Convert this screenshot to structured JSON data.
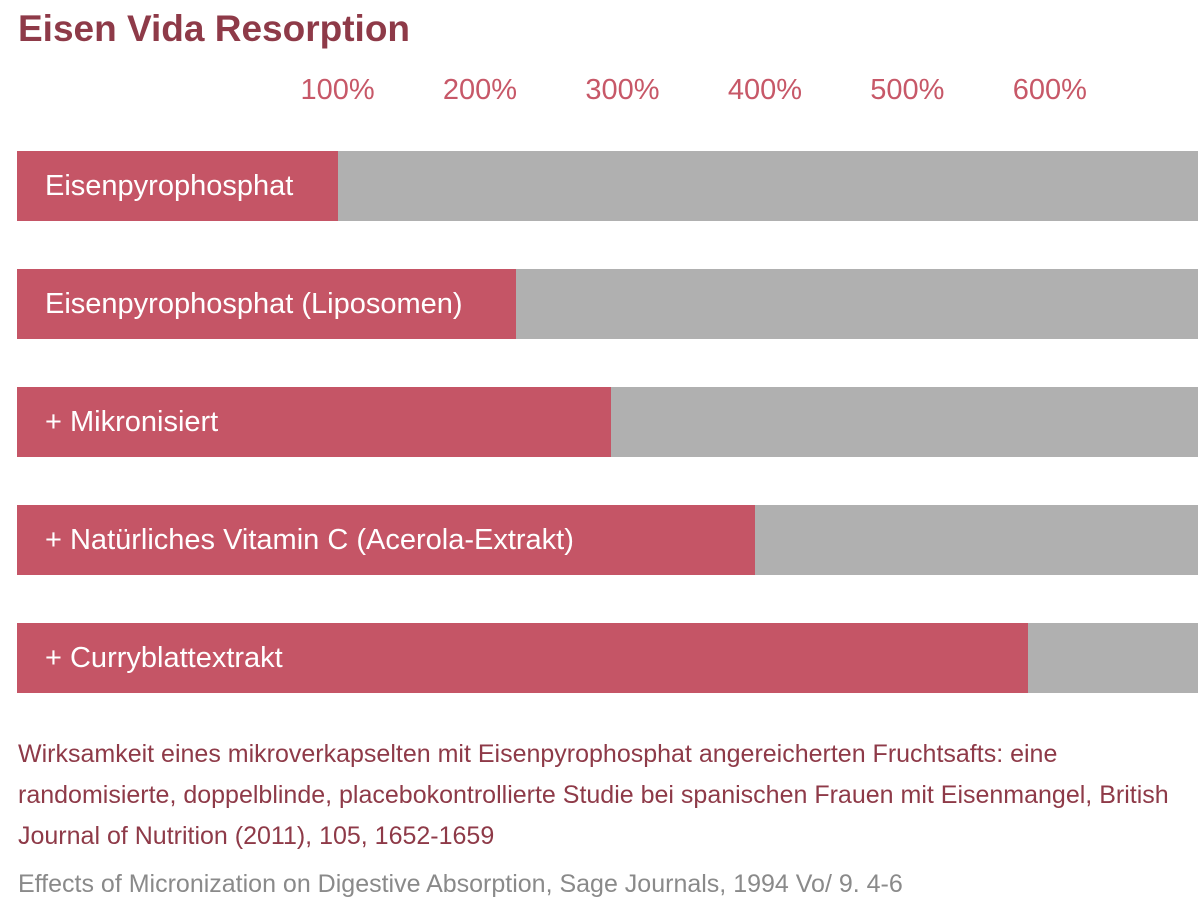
{
  "chart_data": {
    "type": "bar",
    "orientation": "horizontal",
    "title": "Eisen Vida Resorption",
    "categories": [
      "Eisenpyrophosphat",
      "Eisenpyrophosphat (Liposomen)",
      "+ Mikronisiert",
      "+ Natürliches Vitamin C (Acerola-Extrakt)",
      "+ Curryblattextrakt"
    ],
    "values": [
      100,
      225,
      292,
      393,
      585
    ],
    "tick_labels": [
      "100%",
      "200%",
      "300%",
      "400%",
      "500%",
      "600%"
    ],
    "ticks": [
      100,
      200,
      300,
      400,
      500,
      600
    ],
    "xlim": [
      -125,
      704
    ],
    "grid": false,
    "colors": {
      "bar": "#c55566",
      "track": "#b0b0b0",
      "title": "#8e3a48",
      "tick": "#c75868"
    }
  },
  "references": {
    "study_1": "Wirksamkeit eines mikroverkapselten mit Eisenpyrophosphat angereicherten Fruchtsafts: eine randomisierte, doppelblinde, placebokontrollierte Studie bei spanischen Frauen mit Eisenmangel, British Journal of Nutrition (2011), 105, 1652-1659",
    "study_2": "Effects of Micronization on Digestive Absorption, Sage Journals, 1994 Vo/ 9. 4-6"
  }
}
